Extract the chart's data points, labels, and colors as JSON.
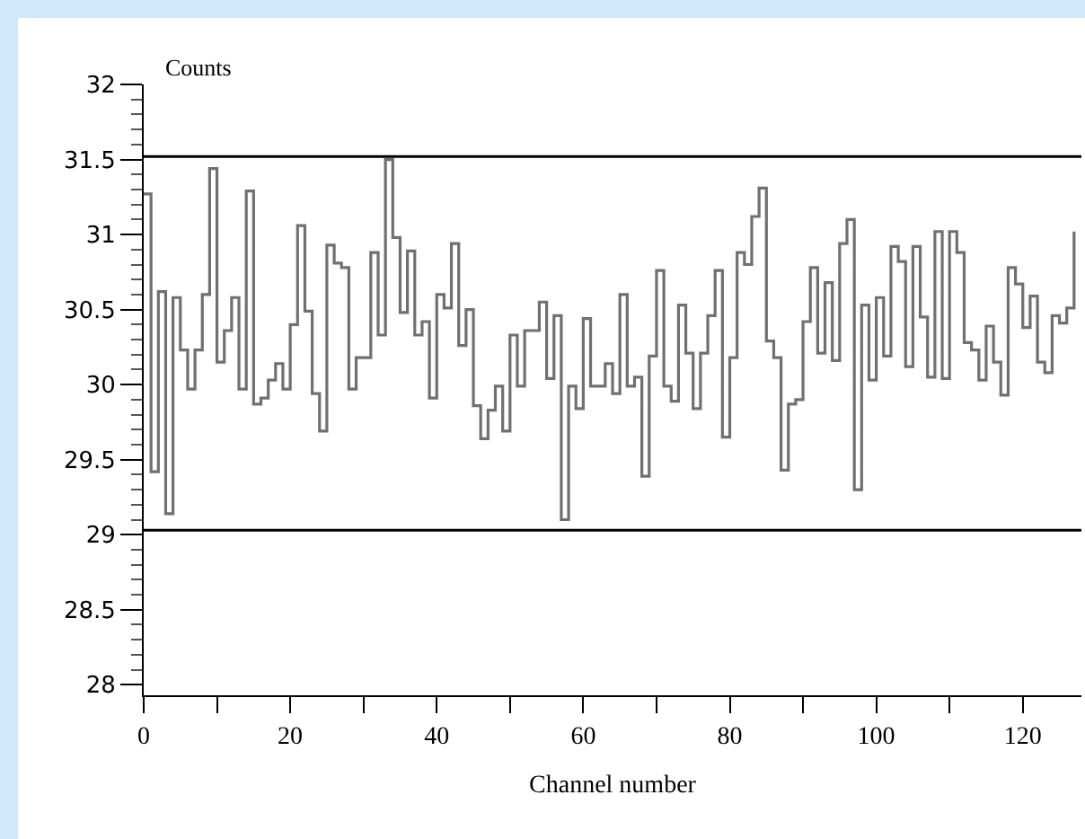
{
  "chart_data": {
    "type": "step",
    "xlabel": "Channel number",
    "ylabel": "Counts",
    "color": "#707070",
    "line_style": "solid",
    "marker": "none",
    "grid": false,
    "x": [
      0,
      1,
      2,
      3,
      4,
      5,
      6,
      7,
      8,
      9,
      10,
      11,
      12,
      13,
      14,
      15,
      16,
      17,
      18,
      19,
      20,
      21,
      22,
      23,
      24,
      25,
      26,
      27,
      28,
      29,
      30,
      31,
      32,
      33,
      34,
      35,
      36,
      37,
      38,
      39,
      40,
      41,
      42,
      43,
      44,
      45,
      46,
      47,
      48,
      49,
      50,
      51,
      52,
      53,
      54,
      55,
      56,
      57,
      58,
      59,
      60,
      61,
      62,
      63,
      64,
      65,
      66,
      67,
      68,
      69,
      70,
      71,
      72,
      73,
      74,
      75,
      76,
      77,
      78,
      79,
      80,
      81,
      82,
      83,
      84,
      85,
      86,
      87,
      88,
      89,
      90,
      91,
      92,
      93,
      94,
      95,
      96,
      97,
      98,
      99,
      100,
      101,
      102,
      103,
      104,
      105,
      106,
      107,
      108,
      109,
      110,
      111,
      112,
      113,
      114,
      115,
      116,
      117,
      118,
      119,
      120,
      121,
      122,
      123,
      124,
      125,
      126,
      127
    ],
    "values": [
      31.27,
      29.42,
      30.62,
      29.14,
      30.58,
      30.23,
      29.97,
      30.23,
      30.6,
      31.44,
      30.15,
      30.36,
      30.58,
      29.97,
      31.29,
      29.87,
      29.91,
      30.03,
      30.14,
      29.97,
      30.4,
      31.06,
      30.49,
      29.94,
      29.69,
      30.93,
      30.81,
      30.78,
      29.97,
      30.18,
      30.18,
      30.88,
      30.33,
      31.5,
      30.98,
      30.48,
      30.89,
      30.33,
      30.42,
      29.91,
      30.6,
      30.51,
      30.94,
      30.26,
      30.5,
      29.86,
      29.64,
      29.83,
      29.99,
      29.69,
      30.33,
      29.99,
      30.36,
      30.36,
      30.55,
      30.04,
      30.46,
      29.1,
      29.99,
      29.84,
      30.44,
      29.99,
      29.99,
      30.14,
      29.94,
      30.6,
      29.99,
      30.05,
      29.39,
      30.19,
      30.76,
      29.99,
      29.89,
      30.53,
      30.21,
      29.84,
      30.21,
      30.46,
      30.76,
      29.65,
      30.18,
      30.88,
      30.8,
      31.12,
      31.31,
      30.29,
      30.18,
      29.43,
      29.87,
      29.9,
      30.42,
      30.78,
      30.21,
      30.68,
      30.16,
      30.94,
      31.1,
      29.3,
      30.53,
      30.03,
      30.58,
      30.19,
      30.92,
      30.82,
      30.12,
      30.92,
      30.45,
      30.05,
      31.02,
      30.04,
      31.02,
      30.88,
      30.28,
      30.23,
      30.03,
      30.39,
      30.15,
      29.93,
      30.78,
      30.67,
      30.38,
      30.59,
      30.15,
      30.08,
      30.46,
      30.41,
      30.51,
      31.02
    ],
    "xlim": [
      0,
      128
    ],
    "xticks": [
      0,
      {
        "value": 10,
        "label": null
      },
      20,
      {
        "value": 30,
        "label": null
      },
      40,
      {
        "value": 50,
        "label": null
      },
      60,
      {
        "value": 70,
        "label": null
      },
      80,
      {
        "value": 90,
        "label": null
      },
      100,
      {
        "value": 110,
        "label": null
      },
      120
    ],
    "ylim": [
      27.93,
      32
    ],
    "yticks": [
      28,
      28.5,
      29,
      29.5,
      30,
      30.5,
      31,
      31.5,
      32
    ],
    "ref_lines": [
      {
        "axis": "y",
        "value": 31.52,
        "color": "#000000"
      },
      {
        "axis": "y",
        "value": 29.03,
        "color": "#000000"
      }
    ]
  }
}
